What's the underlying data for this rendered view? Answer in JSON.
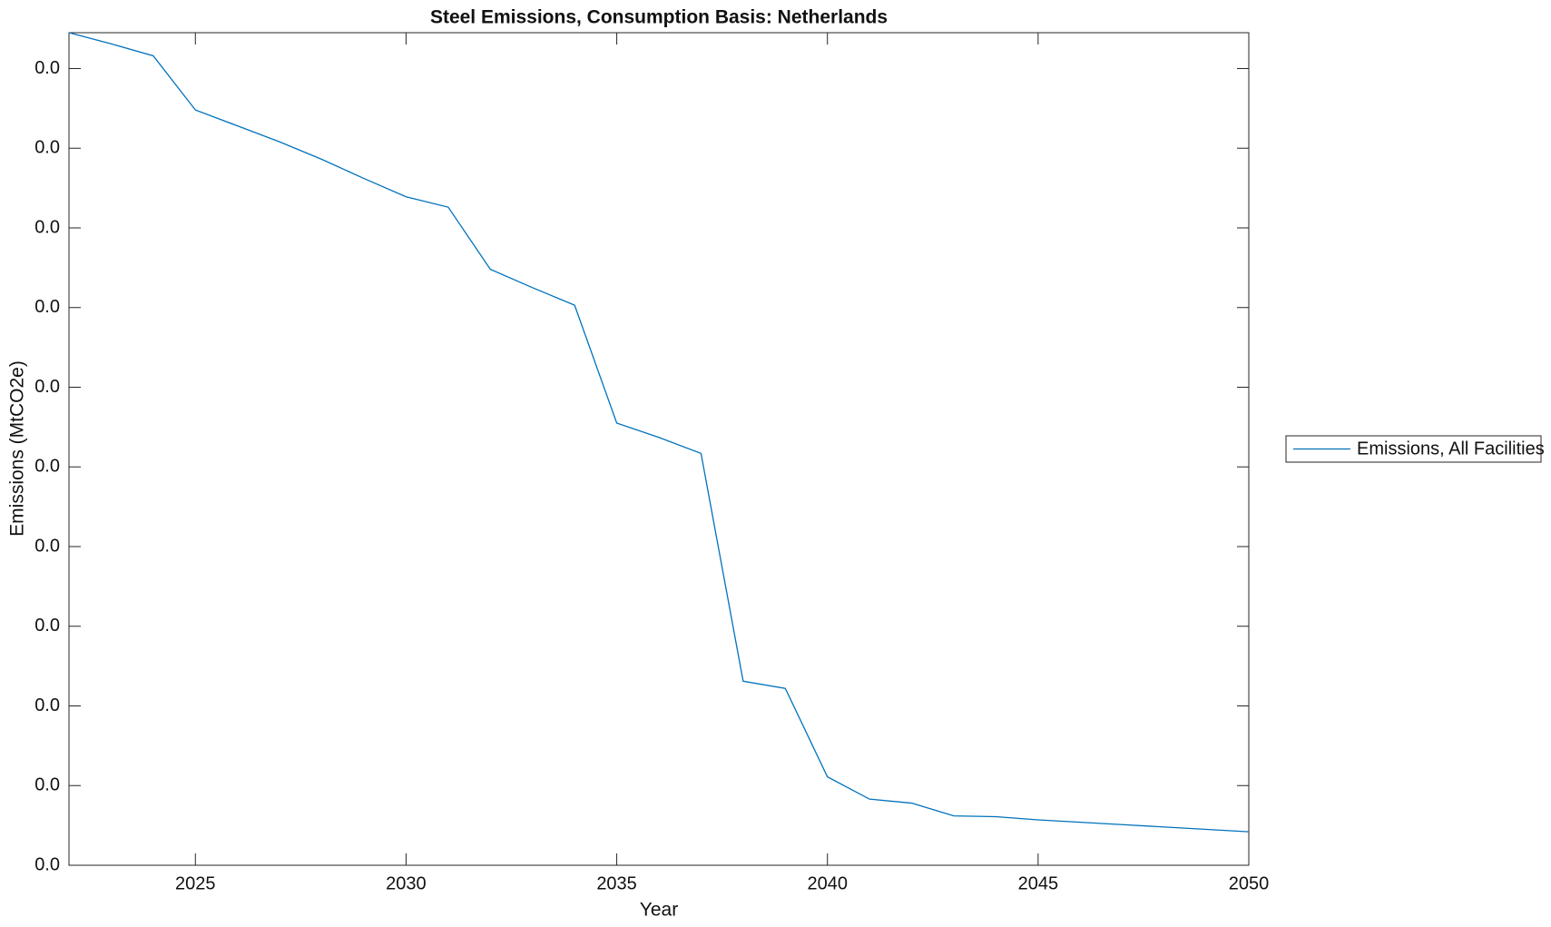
{
  "chart_data": {
    "type": "line",
    "title": "Steel Emissions, Consumption Basis: Netherlands",
    "x_label": "Year",
    "y_label": "Emissions (MtCO2e)",
    "x": [
      2022,
      2023,
      2024,
      2025,
      2026,
      2027,
      2028,
      2029,
      2030,
      2031,
      2032,
      2033,
      2034,
      2035,
      2036,
      2037,
      2038,
      2039,
      2040,
      2041,
      2042,
      2043,
      2044,
      2045,
      2046,
      2047,
      2048,
      2049,
      2050
    ],
    "series": [
      {
        "name": "Emissions, All Facilities",
        "color": "#0072bd",
        "values": [
          0.01045,
          0.01031,
          0.01016,
          0.00948,
          0.00928,
          0.00908,
          0.00886,
          0.00862,
          0.00839,
          0.00826,
          0.00748,
          0.00725,
          0.00703,
          0.00555,
          0.00537,
          0.00517,
          0.00231,
          0.00222,
          0.00111,
          0.00083,
          0.00078,
          0.00062,
          0.00061,
          0.00057,
          0.00054,
          0.00051,
          0.00048,
          0.00045,
          0.00042
        ]
      }
    ],
    "xlim": [
      2022,
      2050
    ],
    "xticks": [
      2025,
      2030,
      2035,
      2040,
      2045,
      2050
    ],
    "ylim": [
      0,
      0.01045
    ],
    "yticks": [
      {
        "value": 0,
        "label": "0.0"
      },
      {
        "value": 0.001,
        "label": "0.0"
      },
      {
        "value": 0.002,
        "label": "0.0"
      },
      {
        "value": 0.003,
        "label": "0.0"
      },
      {
        "value": 0.004,
        "label": "0.0"
      },
      {
        "value": 0.005,
        "label": "0.0"
      },
      {
        "value": 0.006,
        "label": "0.0"
      },
      {
        "value": 0.007,
        "label": "0.0"
      },
      {
        "value": 0.008,
        "label": "0.0"
      },
      {
        "value": 0.009,
        "label": "0.0"
      },
      {
        "value": 0.01,
        "label": "0.0"
      }
    ],
    "grid": false,
    "legend": "right"
  }
}
